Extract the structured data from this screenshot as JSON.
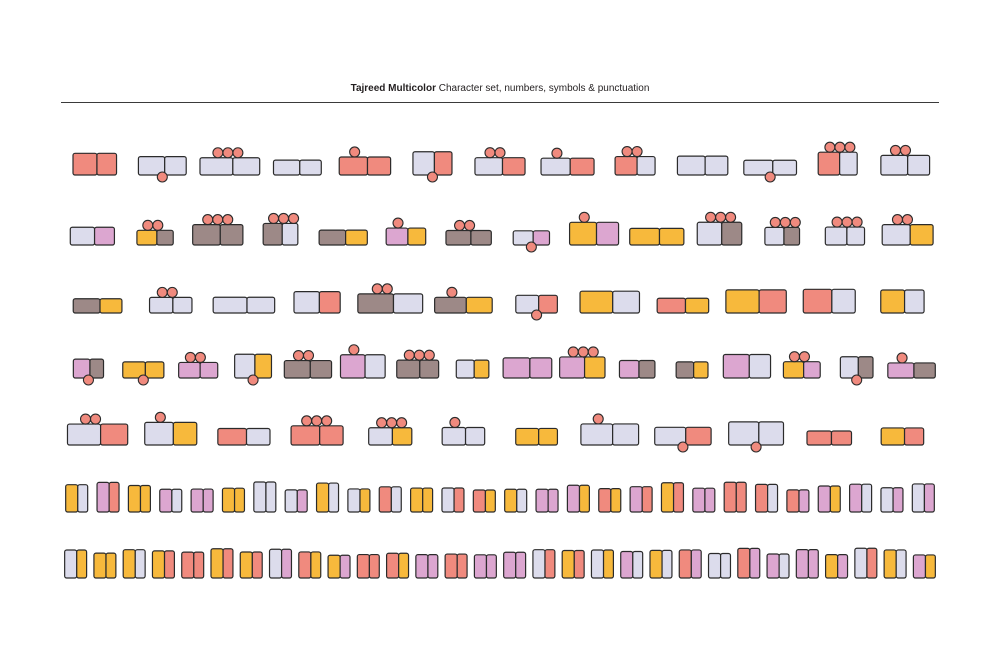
{
  "header": {
    "title_bold": "Tajreed Multicolor",
    "title_rest": "Character set, numbers, symbols & punctuation"
  },
  "palette": {
    "lavender": "#dcdcec",
    "pink": "#dca6d0",
    "salmon": "#f08a7e",
    "yellow": "#f7b93c",
    "taupe": "#9d8987",
    "outline": "#2b2b2b"
  },
  "specimen": {
    "rows": [
      {
        "content": "arabic-letters",
        "glyph_count": 13
      },
      {
        "content": "arabic-letters",
        "glyph_count": 14
      },
      {
        "content": "arabic-letters",
        "glyph_count": 12
      },
      {
        "content": "arabic-letters",
        "glyph_count": 16
      },
      {
        "content": "arabic-letters",
        "glyph_count": 12
      },
      {
        "content": "numerals-and-symbols",
        "glyph_count": 28
      },
      {
        "content": "punctuation",
        "glyph_count": 30
      }
    ]
  }
}
